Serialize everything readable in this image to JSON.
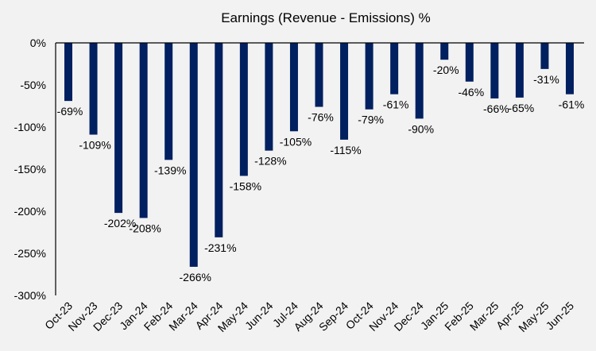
{
  "chart_data": {
    "type": "bar",
    "title": "Earnings (Revenue - Emissions) %",
    "xlabel": "",
    "ylabel": "",
    "ylim": [
      -300,
      0
    ],
    "yticks": [
      "0%",
      "-50%",
      "-100%",
      "-150%",
      "-200%",
      "-250%",
      "-300%"
    ],
    "ytick_values": [
      0,
      -50,
      -100,
      -150,
      -200,
      -250,
      -300
    ],
    "categories": [
      "Oct-23",
      "Nov-23",
      "Dec-23",
      "Jan-24",
      "Feb-24",
      "Mar-24",
      "Apr-24",
      "May-24",
      "Jun-24",
      "Jul-24",
      "Aug-24",
      "Sep-24",
      "Oct-24",
      "Nov-24",
      "Dec-24",
      "Jan-25",
      "Feb-25",
      "Mar-25",
      "Apr-25",
      "May-25",
      "Jun-25"
    ],
    "values": [
      -69,
      -109,
      -202,
      -208,
      -139,
      -266,
      -231,
      -158,
      -128,
      -105,
      -76,
      -115,
      -79,
      -61,
      -90,
      -20,
      -46,
      -66,
      -65,
      -31,
      -61
    ],
    "data_labels": [
      "-69%",
      "-109%",
      "-202%",
      "-208%",
      "-139%",
      "-266%",
      "-231%",
      "-158%",
      "-128%",
      "-105%",
      "-76%",
      "-115%",
      "-79%",
      "-61%",
      "-90%",
      "-20%",
      "-46%",
      "-66%",
      "-65%",
      "-31%",
      "-61%"
    ],
    "bar_color": "#002060",
    "background": "#f2f2f2",
    "grid": false,
    "legend": "none"
  }
}
